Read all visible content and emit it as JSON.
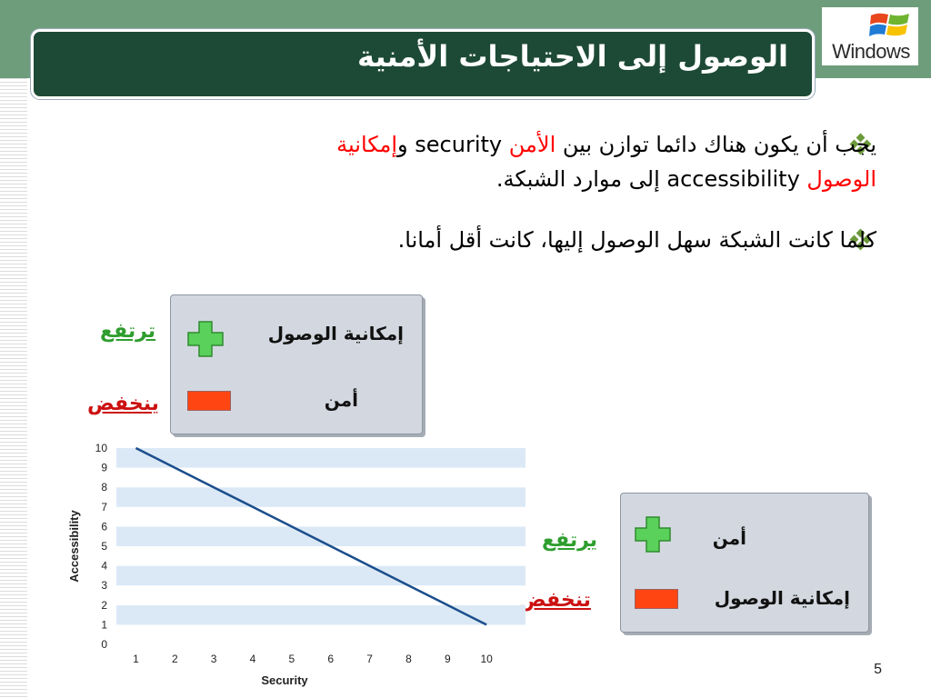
{
  "logo": {
    "text": "Windows"
  },
  "title": "الوصول إلى الاحتياجات الأمنية",
  "bullets": [
    {
      "parts": {
        "a": "يجب أن يكون هناك دائما توازن بين ",
        "b": "الأمن",
        "c": " security ",
        "d": "و",
        "e": "إمكانية",
        "f": "الوصول",
        "g": " accessibility إلى موارد الشبكة."
      }
    },
    {
      "text": "كلما كانت الشبكة سهل الوصول إليها، كانت أقل أمانا."
    }
  ],
  "legend1": {
    "plus_label": "إمكانية الوصول",
    "minus_label": "أمن",
    "up": "ترتفع",
    "down": "ينخفض"
  },
  "legend2": {
    "plus_label": "أمن",
    "minus_label": "إمكانية الوصول",
    "up": "يرتفع",
    "down": "تنخفض"
  },
  "colors": {
    "plus": "#5ad15a",
    "minus": "#ff4612",
    "banner": "#1d4a36",
    "line": "#1b4e8c"
  },
  "icons": {
    "bullet": "diamond-bullet-icon",
    "plus": "plus-icon",
    "minus": "minus-icon"
  },
  "page_number": "5",
  "chart_data": {
    "type": "line",
    "xlabel": "Security",
    "ylabel": "Accessibility",
    "x": [
      1,
      2,
      3,
      4,
      5,
      6,
      7,
      8,
      9,
      10
    ],
    "x_ticks": [
      "1",
      "2",
      "3",
      "4",
      "5",
      "6",
      "7",
      "8",
      "9",
      "10"
    ],
    "y_ticks": [
      "0",
      "1",
      "2",
      "3",
      "4",
      "5",
      "6",
      "7",
      "8",
      "9",
      "10"
    ],
    "series": [
      {
        "values": [
          10,
          9,
          8,
          7,
          6,
          5,
          4,
          3,
          2,
          1
        ]
      }
    ],
    "xlim": [
      0.5,
      11
    ],
    "ylim": [
      0,
      10
    ],
    "grid": "horizontal bands"
  }
}
